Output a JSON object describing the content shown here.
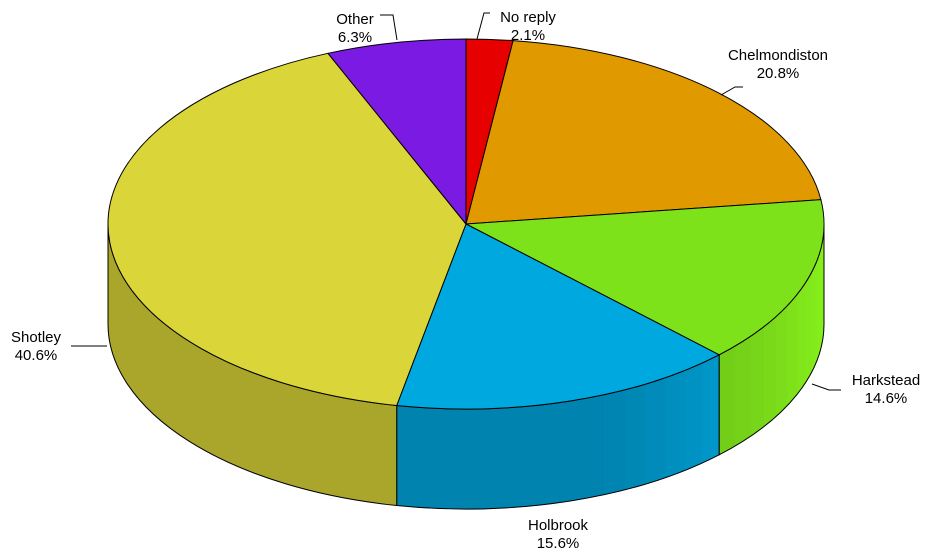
{
  "chart_data": {
    "type": "pie",
    "style": "3d",
    "title": "",
    "slices": [
      {
        "label": "No reply",
        "value": 2.1,
        "pct_label": "2.1%",
        "color": "#e60000"
      },
      {
        "label": "Chelmondiston",
        "value": 20.8,
        "pct_label": "20.8%",
        "color": "#e19900"
      },
      {
        "label": "Harkstead",
        "value": 14.6,
        "pct_label": "14.6%",
        "color": "#7ee21a"
      },
      {
        "label": "Holbrook",
        "value": 15.6,
        "pct_label": "15.6%",
        "color": "#00a8e0"
      },
      {
        "label": "Shotley",
        "value": 40.6,
        "pct_label": "40.6%",
        "color": "#dad538"
      },
      {
        "label": "Other",
        "value": 6.3,
        "pct_label": "6.3%",
        "color": "#7a1ae2"
      }
    ]
  }
}
